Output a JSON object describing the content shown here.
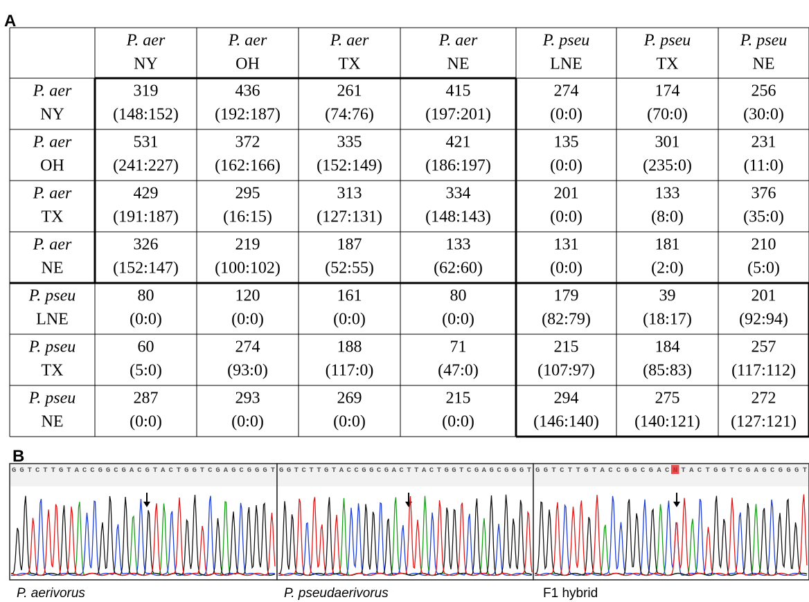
{
  "panel_a": {
    "label": "A",
    "header": [
      {
        "species": "P. aer",
        "site": "NY"
      },
      {
        "species": "P. aer",
        "site": "OH"
      },
      {
        "species": "P. aer",
        "site": "TX"
      },
      {
        "species": "P. aer",
        "site": "NE"
      },
      {
        "species": "P. pseu",
        "site": "LNE"
      },
      {
        "species": "P. pseu",
        "site": "TX"
      },
      {
        "species": "P. pseu",
        "site": "NE"
      }
    ],
    "rows": [
      {
        "species": "P. aer",
        "site": "NY",
        "cells": [
          {
            "count": 319,
            "ratio": "(148:152)"
          },
          {
            "count": 436,
            "ratio": "(192:187)"
          },
          {
            "count": 261,
            "ratio": "(74:76)"
          },
          {
            "count": 415,
            "ratio": "(197:201)"
          },
          {
            "count": 274,
            "ratio": "(0:0)"
          },
          {
            "count": 174,
            "ratio": "(70:0)"
          },
          {
            "count": 256,
            "ratio": "(30:0)"
          }
        ]
      },
      {
        "species": "P. aer",
        "site": "OH",
        "cells": [
          {
            "count": 531,
            "ratio": "(241:227)"
          },
          {
            "count": 372,
            "ratio": "(162:166)"
          },
          {
            "count": 335,
            "ratio": "(152:149)"
          },
          {
            "count": 421,
            "ratio": "(186:197)"
          },
          {
            "count": 135,
            "ratio": "(0:0)"
          },
          {
            "count": 301,
            "ratio": "(235:0)"
          },
          {
            "count": 231,
            "ratio": "(11:0)"
          }
        ]
      },
      {
        "species": "P. aer",
        "site": "TX",
        "cells": [
          {
            "count": 429,
            "ratio": "(191:187)"
          },
          {
            "count": 295,
            "ratio": "(16:15)"
          },
          {
            "count": 313,
            "ratio": "(127:131)"
          },
          {
            "count": 334,
            "ratio": "(148:143)"
          },
          {
            "count": 201,
            "ratio": "(0:0)"
          },
          {
            "count": 133,
            "ratio": "(8:0)"
          },
          {
            "count": 376,
            "ratio": "(35:0)"
          }
        ]
      },
      {
        "species": "P. aer",
        "site": "NE",
        "cells": [
          {
            "count": 326,
            "ratio": "(152:147)"
          },
          {
            "count": 219,
            "ratio": "(100:102)"
          },
          {
            "count": 187,
            "ratio": "(52:55)"
          },
          {
            "count": 133,
            "ratio": "(62:60)"
          },
          {
            "count": 131,
            "ratio": "(0:0)"
          },
          {
            "count": 181,
            "ratio": "(2:0)"
          },
          {
            "count": 210,
            "ratio": "(5:0)"
          }
        ]
      },
      {
        "species": "P. pseu",
        "site": "LNE",
        "cells": [
          {
            "count": 80,
            "ratio": "(0:0)"
          },
          {
            "count": 120,
            "ratio": "(0:0)"
          },
          {
            "count": 161,
            "ratio": "(0:0)"
          },
          {
            "count": 80,
            "ratio": "(0:0)"
          },
          {
            "count": 179,
            "ratio": "(82:79)"
          },
          {
            "count": 39,
            "ratio": "(18:17)"
          },
          {
            "count": 201,
            "ratio": "(92:94)"
          }
        ]
      },
      {
        "species": "P. pseu",
        "site": "TX",
        "cells": [
          {
            "count": 60,
            "ratio": "(5:0)"
          },
          {
            "count": 274,
            "ratio": "(93:0)"
          },
          {
            "count": 188,
            "ratio": "(117:0)"
          },
          {
            "count": 71,
            "ratio": "(47:0)"
          },
          {
            "count": 215,
            "ratio": "(107:97)"
          },
          {
            "count": 184,
            "ratio": "(85:83)"
          },
          {
            "count": 257,
            "ratio": "(117:112)"
          }
        ]
      },
      {
        "species": "P. pseu",
        "site": "NE",
        "cells": [
          {
            "count": 287,
            "ratio": "(0:0)"
          },
          {
            "count": 293,
            "ratio": "(0:0)"
          },
          {
            "count": 269,
            "ratio": "(0:0)"
          },
          {
            "count": 215,
            "ratio": "(0:0)"
          },
          {
            "count": 294,
            "ratio": "(146:140)"
          },
          {
            "count": 275,
            "ratio": "(140:121)"
          },
          {
            "count": 272,
            "ratio": "(127:121)"
          }
        ]
      }
    ]
  },
  "panel_b": {
    "label": "B",
    "traces": [
      {
        "sequence": "GGTCTTGTACCGGCGACGTACTGGTCGAGCGGGT",
        "caption": "P. aerivorus"
      },
      {
        "sequence": "GGTCTTGTACCGGCGACTTACTGGTCGAGCGGGT",
        "caption": "P. pseudaerivorus"
      },
      {
        "sequence": "GGTCTTGTACCGGCGACNTACTGGTCGAGCGGGT",
        "caption": "F1 hybrid"
      }
    ]
  }
}
